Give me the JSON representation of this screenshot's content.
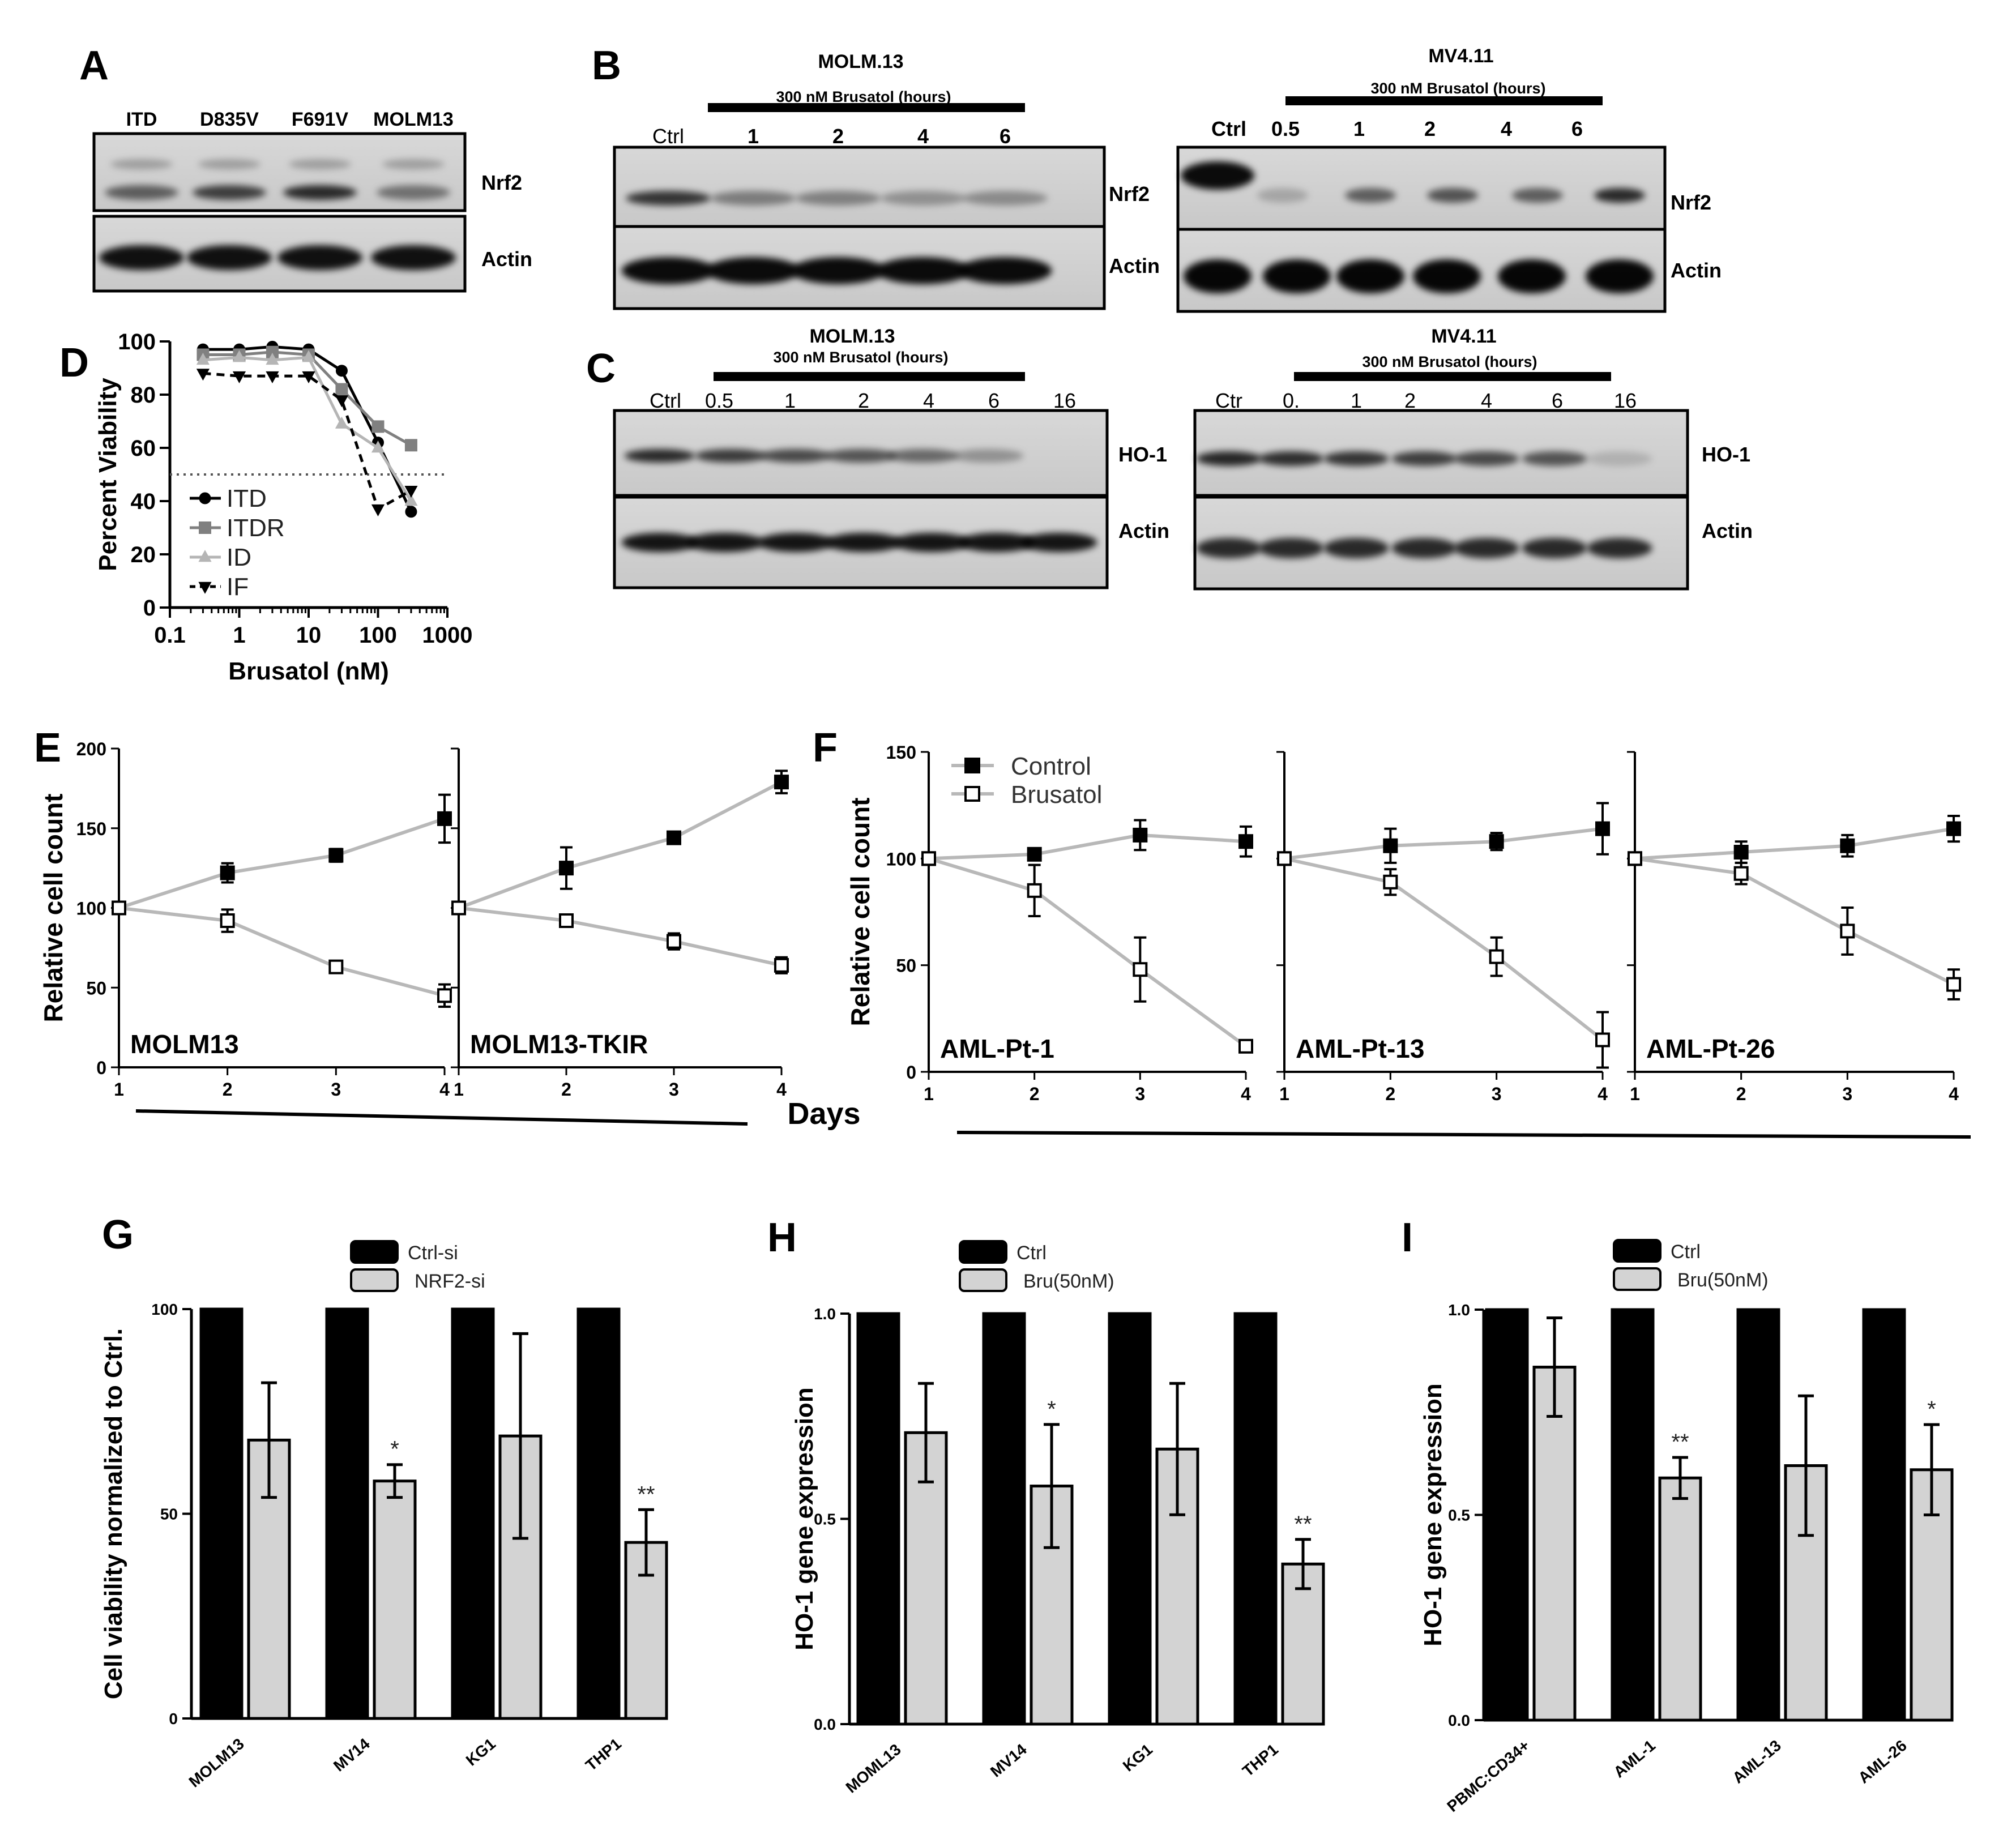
{
  "panels": {
    "A": {
      "letter": "A",
      "lanes": [
        "ITD",
        "D835V",
        "F691V",
        "MOLM13"
      ],
      "rows": [
        "Nrf2",
        "Actin"
      ]
    },
    "B": {
      "letter": "B",
      "left": {
        "cell_line": "MOLM.13",
        "treatment": "300 nM Brusatol (hours)",
        "lanes": [
          "Ctrl",
          "1",
          "2",
          "4",
          "6"
        ],
        "rows": [
          "Nrf2",
          "Actin"
        ]
      },
      "right": {
        "cell_line": "MV4.11",
        "treatment": "300 nM Brusatol (hours)",
        "lanes": [
          "Ctrl",
          "0.5",
          "1",
          "2",
          "4",
          "6"
        ],
        "rows": [
          "Nrf2",
          "Actin"
        ]
      }
    },
    "C": {
      "letter": "C",
      "left": {
        "cell_line": "MOLM.13",
        "treatment": "300 nM Brusatol (hours)",
        "lanes": [
          "Ctrl",
          "0.5",
          "1",
          "2",
          "4",
          "6",
          "16"
        ],
        "rows": [
          "HO-1",
          "Actin"
        ]
      },
      "right": {
        "cell_line": "MV4.11",
        "treatment": "300 nM Brusatol (hours)",
        "lanes": [
          "Ctr",
          "0.",
          "1",
          "2",
          "4",
          "6",
          "16"
        ],
        "rows": [
          "HO-1",
          "Actin"
        ]
      }
    },
    "D": {
      "letter": "D"
    },
    "E": {
      "letter": "E",
      "subpanels": [
        "MOLM13",
        "MOLM13-TKIR"
      ]
    },
    "F": {
      "letter": "F",
      "subpanels": [
        "AML-Pt-1",
        "AML-Pt-13",
        "AML-Pt-26"
      ]
    },
    "G": {
      "letter": "G"
    },
    "H": {
      "letter": "H"
    },
    "I": {
      "letter": "I"
    },
    "days_label": "Days"
  },
  "chart_data": [
    {
      "id": "D",
      "type": "line",
      "xscale": "log",
      "xlabel": "Brusatol  (nM)",
      "ylabel": "Percent Viability",
      "xticks": [
        "0.1",
        "1",
        "10",
        "100",
        "1000"
      ],
      "yticks": [
        "0",
        "20",
        "40",
        "60",
        "80",
        "100"
      ],
      "xlim": [
        0.1,
        1000
      ],
      "ylim": [
        0,
        100
      ],
      "reference_line_y": 50,
      "legend": "bottom-left",
      "x": [
        0.3,
        1,
        3,
        10,
        30,
        100,
        300
      ],
      "series": [
        {
          "name": "ITD",
          "values": [
            97,
            97,
            98,
            97,
            89,
            62,
            36
          ],
          "color": "#000000",
          "marker": "circle",
          "dash": "solid"
        },
        {
          "name": "ITDR",
          "values": [
            95,
            95,
            96,
            95,
            82,
            68,
            61
          ],
          "color": "#808080",
          "marker": "square",
          "dash": "solid"
        },
        {
          "name": "ID",
          "values": [
            93,
            94,
            93,
            94,
            69,
            60,
            40
          ],
          "color": "#b5b5b5",
          "marker": "triangle",
          "dash": "solid"
        },
        {
          "name": "IF",
          "values": [
            88,
            87,
            87,
            87,
            78,
            37,
            44
          ],
          "color": "#000000",
          "marker": "triangle-down",
          "dash": "dashed"
        }
      ]
    },
    {
      "id": "E",
      "type": "line",
      "ylabel": "Relative cell count",
      "xlabel": "Days",
      "yticks": [
        "0",
        "50",
        "100",
        "150",
        "200"
      ],
      "ylim": [
        0,
        200
      ],
      "xticks": [
        "1",
        "2",
        "3",
        "4"
      ],
      "subplots": [
        {
          "label": "MOLM13",
          "series": [
            {
              "name": "Control",
              "x": [
                1,
                2,
                3,
                4
              ],
              "values": [
                100,
                122,
                133,
                156
              ],
              "err": [
                0,
                6,
                4,
                15
              ]
            },
            {
              "name": "Brusatol",
              "x": [
                1,
                2,
                3,
                4
              ],
              "values": [
                100,
                92,
                63,
                45
              ],
              "err": [
                0,
                7,
                3,
                7
              ]
            }
          ]
        },
        {
          "label": "MOLM13-TKIR",
          "series": [
            {
              "name": "Control",
              "x": [
                1,
                2,
                3,
                4
              ],
              "values": [
                100,
                125,
                144,
                179
              ],
              "err": [
                0,
                13,
                0,
                7
              ]
            },
            {
              "name": "Brusatol",
              "x": [
                1,
                2,
                3,
                4
              ],
              "values": [
                100,
                92,
                79,
                64
              ],
              "err": [
                0,
                0,
                5,
                5
              ]
            }
          ]
        }
      ]
    },
    {
      "id": "F",
      "type": "line",
      "ylabel": "Relative cell count",
      "xlabel": "Days",
      "yticks": [
        "0",
        "50",
        "100",
        "150"
      ],
      "ylim": [
        0,
        150
      ],
      "xticks": [
        "1",
        "2",
        "3",
        "4"
      ],
      "legend_entries": [
        "Control",
        "Brusatol"
      ],
      "subplots": [
        {
          "label": "AML-Pt-1",
          "series": [
            {
              "name": "Control",
              "x": [
                1,
                2,
                3,
                4
              ],
              "values": [
                100,
                102,
                111,
                108
              ],
              "err": [
                0,
                0,
                7,
                7
              ]
            },
            {
              "name": "Brusatol",
              "x": [
                1,
                2,
                3,
                4
              ],
              "values": [
                100,
                85,
                48,
                12
              ],
              "err": [
                0,
                12,
                15,
                0
              ]
            }
          ]
        },
        {
          "label": "AML-Pt-13",
          "series": [
            {
              "name": "Control",
              "x": [
                1,
                2,
                3,
                4
              ],
              "values": [
                100,
                106,
                108,
                114
              ],
              "err": [
                0,
                8,
                4,
                12
              ]
            },
            {
              "name": "Brusatol",
              "x": [
                1,
                2,
                3,
                4
              ],
              "values": [
                100,
                89,
                54,
                15
              ],
              "err": [
                0,
                6,
                9,
                13
              ]
            }
          ]
        },
        {
          "label": "AML-Pt-26",
          "series": [
            {
              "name": "Control",
              "x": [
                1,
                2,
                3,
                4
              ],
              "values": [
                100,
                103,
                106,
                114
              ],
              "err": [
                0,
                5,
                5,
                6
              ]
            },
            {
              "name": "Brusatol",
              "x": [
                1,
                2,
                3,
                4
              ],
              "values": [
                100,
                93,
                66,
                41
              ],
              "err": [
                0,
                5,
                11,
                7
              ]
            }
          ]
        }
      ]
    },
    {
      "id": "G",
      "type": "bar",
      "ylabel": "Cell viability normalized to Ctrl.",
      "categories": [
        "MOLM13",
        "MV14",
        "KG1",
        "THP1"
      ],
      "yticks": [
        "0",
        "50",
        "100"
      ],
      "ylim": [
        0,
        100
      ],
      "series": [
        {
          "name": "Ctrl-si",
          "values": [
            100,
            100,
            100,
            100
          ],
          "err": [
            0,
            0,
            0,
            0
          ],
          "color": "#000000"
        },
        {
          "name": "NRF2-si",
          "values": [
            68,
            58,
            69,
            43
          ],
          "err": [
            14,
            4,
            25,
            8
          ],
          "color": "#d3d3d3"
        }
      ],
      "annotations": [
        "",
        "*",
        "",
        "**"
      ]
    },
    {
      "id": "H",
      "type": "bar",
      "ylabel": "HO-1 gene expression",
      "categories": [
        "MOML13",
        "MV14",
        "KG1",
        "THP1"
      ],
      "yticks": [
        "0.0",
        "0.5",
        "1.0"
      ],
      "ylim": [
        0,
        1
      ],
      "series": [
        {
          "name": "Ctrl",
          "values": [
            1,
            1,
            1,
            1
          ],
          "err": [
            0,
            0,
            0,
            0
          ],
          "color": "#000000"
        },
        {
          "name": "Bru(50nM)",
          "values": [
            0.71,
            0.58,
            0.67,
            0.39
          ],
          "err": [
            0.12,
            0.15,
            0.16,
            0.06
          ],
          "color": "#d3d3d3"
        }
      ],
      "annotations": [
        "",
        "*",
        "",
        "**"
      ]
    },
    {
      "id": "I",
      "type": "bar",
      "ylabel": "HO-1 gene expression",
      "categories": [
        "PBMC:CD34+",
        "AML-1",
        "AML-13",
        "AML-26"
      ],
      "yticks": [
        "0.0",
        "0.5",
        "1.0"
      ],
      "ylim": [
        0,
        1
      ],
      "series": [
        {
          "name": "Ctrl",
          "values": [
            1,
            1,
            1,
            1
          ],
          "err": [
            0,
            0,
            0,
            0
          ],
          "color": "#000000"
        },
        {
          "name": "Bru(50nM)",
          "values": [
            0.86,
            0.59,
            0.62,
            0.61
          ],
          "err": [
            0.12,
            0.05,
            0.17,
            0.11
          ],
          "color": "#d3d3d3"
        }
      ],
      "annotations": [
        "",
        "**",
        "",
        "*"
      ]
    }
  ]
}
